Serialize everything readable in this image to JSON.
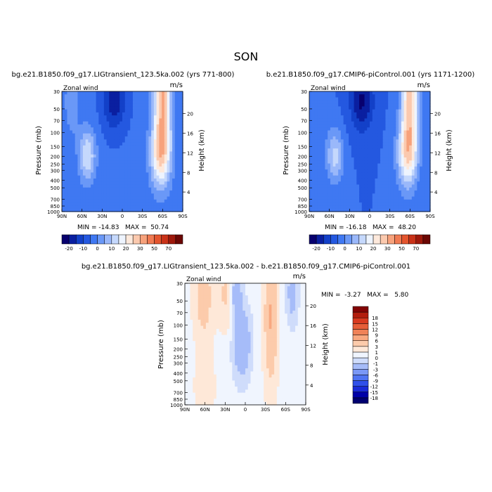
{
  "figure": {
    "title": "SON",
    "colors": {
      "abs_scale": [
        "#08006e",
        "#0a1fa0",
        "#1340c8",
        "#2458e0",
        "#3f78f2",
        "#6a98f7",
        "#9ab8fa",
        "#c5d8fc",
        "#eef4fe",
        "#fde9dc",
        "#fbc9ae",
        "#f7a27c",
        "#f07a52",
        "#e4552e",
        "#c93218",
        "#9e180b",
        "#6b0704"
      ],
      "diff_scale": [
        "#000070",
        "#0000a8",
        "#1a2bd8",
        "#3050ea",
        "#4f74f2",
        "#7a98f6",
        "#a6bcf9",
        "#cfdcfb",
        "#f0f5fe",
        "#fee8d8",
        "#fccbab",
        "#f8a880",
        "#f08258",
        "#e65e38",
        "#d83a1f",
        "#b21d0d",
        "#820404"
      ]
    }
  },
  "chart_data": [
    {
      "type": "heatmap",
      "title": "bg.e21.B1850.f09_g17.LIGtransient_123.5ka.002 (yrs 771-800)",
      "field_label": "Zonal wind",
      "units": "m/s",
      "ylabel": "Pressure (mb)",
      "ylabel_right": "Height (km)",
      "x_ticks": [
        "90N",
        "60N",
        "30N",
        "0",
        "30S",
        "60S",
        "90S"
      ],
      "y_ticks": [
        "30",
        "50",
        "70",
        "100",
        "150",
        "200",
        "250",
        "300",
        "400",
        "500",
        "700",
        "850",
        "1000"
      ],
      "height_ticks": [
        "20",
        "16",
        "12",
        "8",
        "4"
      ],
      "stats": "MIN = -14.83   MAX =  50.74",
      "colorbar_labels": [
        "-20",
        "-10",
        "0",
        "10",
        "20",
        "30",
        "50",
        "70"
      ],
      "colorbar_levels": [
        -20,
        -15,
        -10,
        -5,
        0,
        5,
        10,
        15,
        20,
        25,
        30,
        40,
        50,
        60,
        70
      ],
      "field": {
        "lat_grid": [
          90,
          75,
          60,
          45,
          30,
          15,
          0,
          -15,
          -30,
          -45,
          -60,
          -75,
          -90
        ],
        "pressure_grid": [
          30,
          50,
          70,
          100,
          150,
          200,
          250,
          300,
          400,
          500,
          700,
          850,
          1000
        ],
        "features": [
          {
            "lat": 52,
            "p": 195,
            "amp": 19,
            "slat": 9,
            "slp": 0.55
          },
          {
            "lat": -57,
            "p": 190,
            "amp": 27,
            "slat": 11,
            "slp": 0.7
          },
          {
            "lat": -60,
            "p": 30,
            "amp": 35,
            "slat": 9,
            "slp": 1.1
          },
          {
            "lat": 12,
            "p": 40,
            "amp": -14,
            "slat": 12,
            "slp": 0.6
          },
          {
            "lat": 75,
            "p": 40,
            "amp": 8,
            "slat": 8,
            "slp": 0.7
          }
        ],
        "background": -4
      }
    },
    {
      "type": "heatmap",
      "title": "b.e21.B1850.f09_g17.CMIP6-piControl.001 (yrs 1171-1200)",
      "field_label": "Zonal wind",
      "units": "m/s",
      "ylabel": "Pressure (mb)",
      "ylabel_right": "Height (km)",
      "x_ticks": [
        "90N",
        "60N",
        "30N",
        "0",
        "30S",
        "60S",
        "90S"
      ],
      "y_ticks": [
        "30",
        "50",
        "70",
        "100",
        "150",
        "200",
        "250",
        "300",
        "400",
        "500",
        "700",
        "850",
        "1000"
      ],
      "height_ticks": [
        "20",
        "16",
        "12",
        "8",
        "4"
      ],
      "stats": "MIN = -16.18   MAX =  48.20",
      "colorbar_labels": [
        "-20",
        "-10",
        "0",
        "10",
        "20",
        "30",
        "50",
        "70"
      ],
      "colorbar_levels": [
        -20,
        -15,
        -10,
        -5,
        0,
        5,
        10,
        15,
        20,
        25,
        30,
        40,
        50,
        60,
        70
      ],
      "field": {
        "features": [
          {
            "lat": 52,
            "p": 200,
            "amp": 17,
            "slat": 9,
            "slp": 0.55
          },
          {
            "lat": -56,
            "p": 190,
            "amp": 25,
            "slat": 11,
            "slp": 0.7
          },
          {
            "lat": -60,
            "p": 35,
            "amp": 32,
            "slat": 9,
            "slp": 1.1
          },
          {
            "lat": 12,
            "p": 40,
            "amp": -16,
            "slat": 12,
            "slp": 0.6
          },
          {
            "lat": 75,
            "p": 45,
            "amp": 4,
            "slat": 8,
            "slp": 0.7
          }
        ],
        "background": -5
      }
    },
    {
      "type": "heatmap",
      "title": "bg.e21.B1850.f09_g17.LIGtransient_123.5ka.002 - b.e21.B1850.f09_g17.CMIP6-piControl.001",
      "field_label": "Zonal wind",
      "units": "m/s",
      "ylabel": "Pressure (mb)",
      "ylabel_right": "Height (km)",
      "x_ticks": [
        "90N",
        "60N",
        "30N",
        "0",
        "30S",
        "60S",
        "90S"
      ],
      "y_ticks": [
        "30",
        "50",
        "70",
        "100",
        "150",
        "200",
        "250",
        "300",
        "400",
        "500",
        "700",
        "850",
        "1000"
      ],
      "height_ticks": [
        "20",
        "16",
        "12",
        "8",
        "4"
      ],
      "stats": "MIN =  -3.27   MAX =   5.80",
      "colorbar_labels": [
        "18",
        "15",
        "12",
        "9",
        "6",
        "3",
        "1",
        "0",
        "-1",
        "-3",
        "-6",
        "-9",
        "-12",
        "-15",
        "-18"
      ],
      "colorbar_levels": [
        -18,
        -15,
        -12,
        -9,
        -6,
        -3,
        -1,
        0,
        1,
        3,
        6,
        9,
        12,
        15,
        18
      ],
      "field": {
        "features": [
          {
            "lat": 62,
            "p": 45,
            "amp": 4.2,
            "slat": 10,
            "slp": 0.9
          },
          {
            "lat": 30,
            "p": 40,
            "amp": 3.0,
            "slat": 7,
            "slp": 0.7
          },
          {
            "lat": -38,
            "p": 80,
            "amp": 5.8,
            "slat": 7,
            "slp": 1.4
          },
          {
            "lat": 5,
            "p": 170,
            "amp": -3.2,
            "slat": 9,
            "slp": 0.7
          },
          {
            "lat": 14,
            "p": 40,
            "amp": -2.6,
            "slat": 6,
            "slp": 0.4
          },
          {
            "lat": -70,
            "p": 40,
            "amp": -2.2,
            "slat": 6,
            "slp": 0.6
          },
          {
            "lat": 60,
            "p": 600,
            "amp": 1.5,
            "slat": 12,
            "slp": 0.6
          }
        ],
        "background": 0.4
      }
    }
  ]
}
